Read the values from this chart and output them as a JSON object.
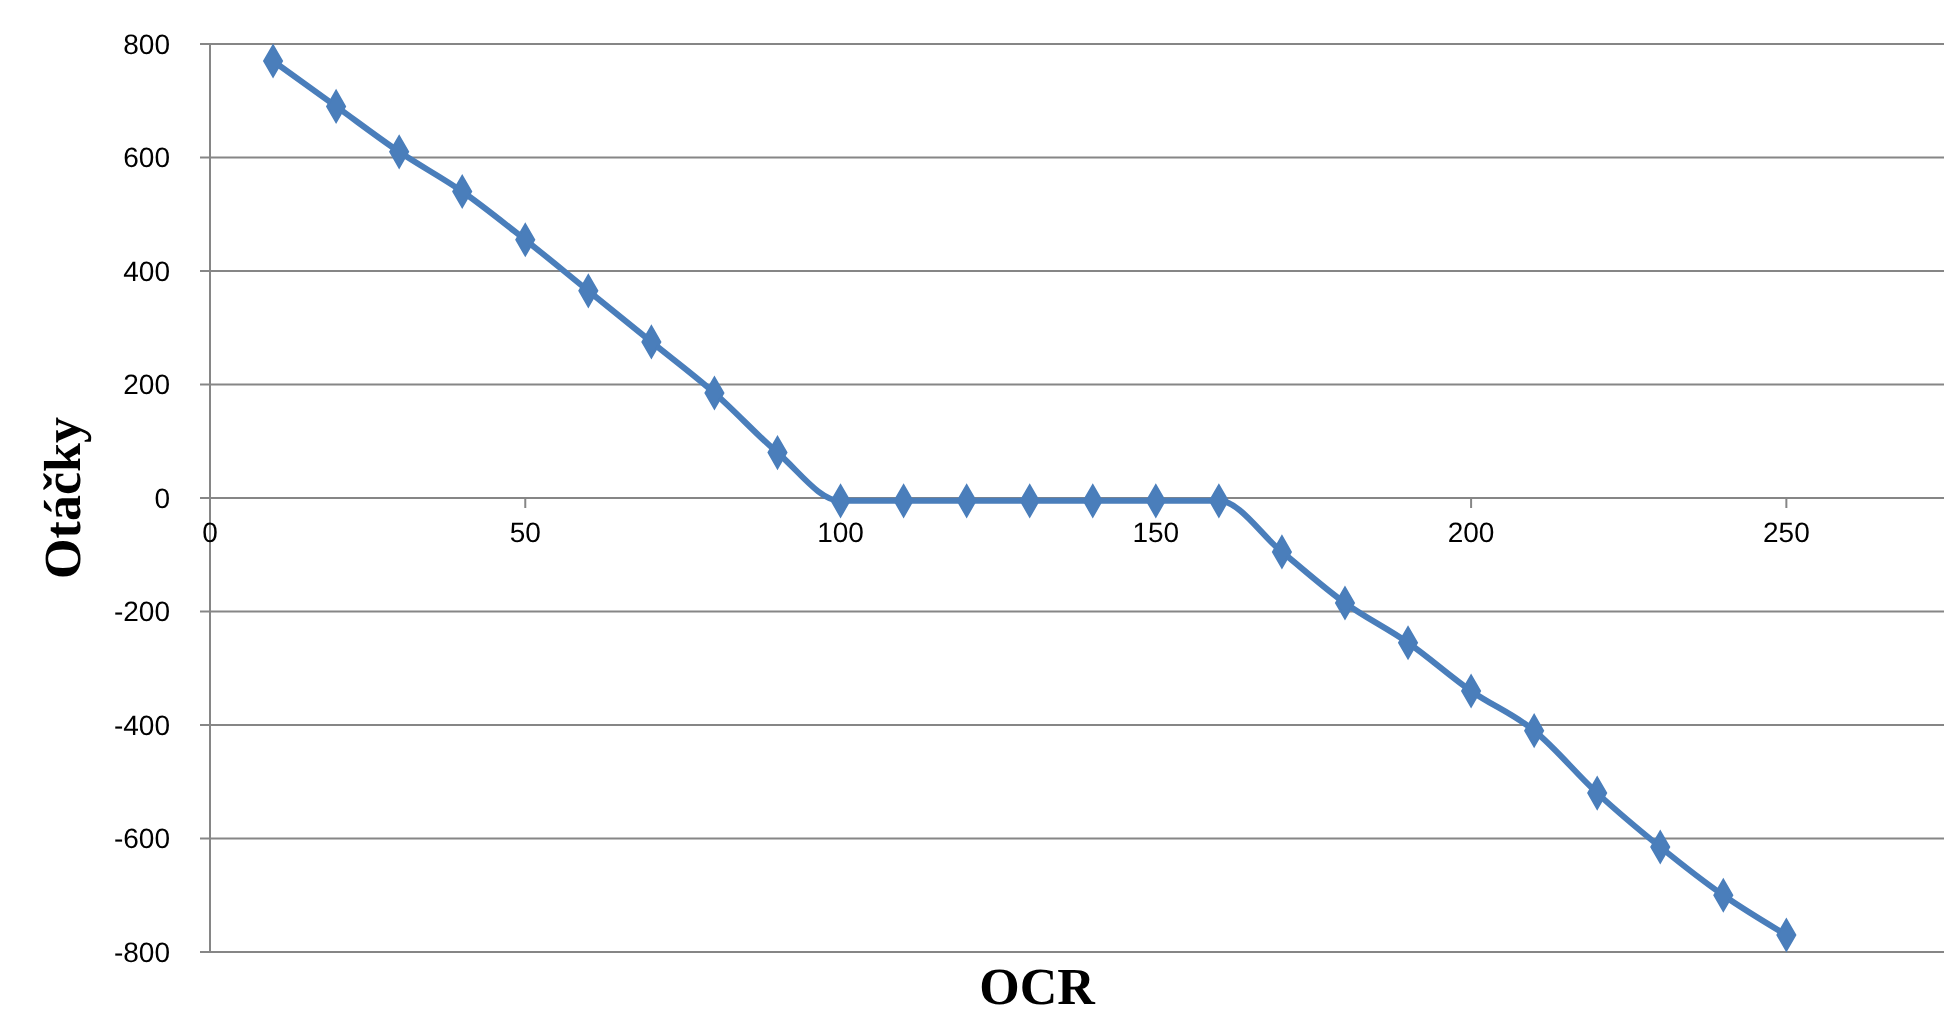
{
  "chart_data": {
    "type": "line",
    "xlabel": "OCR",
    "ylabel": "Otáčky",
    "x": [
      10,
      20,
      30,
      40,
      50,
      60,
      70,
      80,
      90,
      100,
      110,
      120,
      130,
      140,
      150,
      160,
      170,
      180,
      190,
      200,
      210,
      220,
      230,
      240,
      250
    ],
    "series": [
      {
        "color": "#4a7ebb",
        "values": [
          770,
          690,
          610,
          540,
          455,
          365,
          275,
          185,
          80,
          -5,
          -5,
          -5,
          -5,
          -5,
          -5,
          -5,
          -95,
          -185,
          -255,
          -340,
          -410,
          -520,
          -615,
          -700,
          -770
        ]
      }
    ],
    "xlim": [
      0,
      275
    ],
    "xticks": [
      0,
      50,
      100,
      150,
      200,
      250
    ],
    "ylim": [
      -800,
      800
    ],
    "yticks": [
      -800,
      -600,
      -400,
      -200,
      0,
      200,
      400,
      600,
      800
    ],
    "grid": "y",
    "marker": "diamond",
    "line_style": "solid"
  }
}
